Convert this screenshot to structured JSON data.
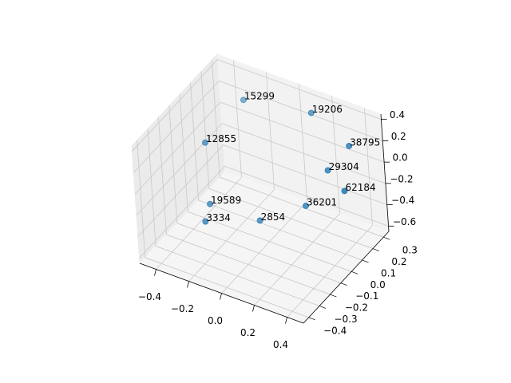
{
  "chart_data": {
    "type": "scatter3d",
    "series": [
      {
        "color": "#1f77b4",
        "x": [
          -0.24,
          0.1,
          0.33,
          -0.34,
          0.23,
          0.34,
          -0.3,
          0.12,
          -0.3,
          -0.08
        ],
        "y": [
          0.19,
          0.3,
          0.29,
          -0.03,
          0.23,
          0.21,
          -0.08,
          0.17,
          -0.13,
          0.04
        ],
        "z": [
          0.34,
          0.29,
          0.12,
          0.12,
          -0.1,
          -0.21,
          -0.38,
          -0.43,
          -0.49,
          -0.54
        ],
        "point_labels": [
          "15299",
          "19206",
          "38795",
          "12855",
          "29304",
          "62184",
          "19589",
          "36201",
          "3334",
          "2854"
        ]
      }
    ],
    "xlim": [
      -0.5,
      0.5
    ],
    "ylim": [
      -0.45,
      0.35
    ],
    "zlim": [
      -0.65,
      0.45
    ],
    "xticks": [
      {
        "value": -0.4,
        "label": "−0.4"
      },
      {
        "value": -0.2,
        "label": "−0.2"
      },
      {
        "value": 0,
        "label": "0.0"
      },
      {
        "value": 0.2,
        "label": "0.2"
      },
      {
        "value": 0.4,
        "label": "0.4"
      }
    ],
    "yticks": [
      {
        "value": -0.4,
        "label": "−0.4"
      },
      {
        "value": -0.3,
        "label": "−0.3"
      },
      {
        "value": -0.2,
        "label": "−0.2"
      },
      {
        "value": -0.1,
        "label": "−0.1"
      },
      {
        "value": 0,
        "label": "0.0"
      },
      {
        "value": 0.1,
        "label": "0.1"
      },
      {
        "value": 0.2,
        "label": "0.2"
      },
      {
        "value": 0.3,
        "label": "0.3"
      }
    ],
    "zticks": [
      {
        "value": -0.6,
        "label": "−0.6"
      },
      {
        "value": -0.4,
        "label": "−0.4"
      },
      {
        "value": -0.2,
        "label": "−0.2"
      },
      {
        "value": 0,
        "label": "0.0"
      },
      {
        "value": 0.2,
        "label": "0.2"
      },
      {
        "value": 0.4,
        "label": "0.4"
      }
    ],
    "grid": true
  }
}
